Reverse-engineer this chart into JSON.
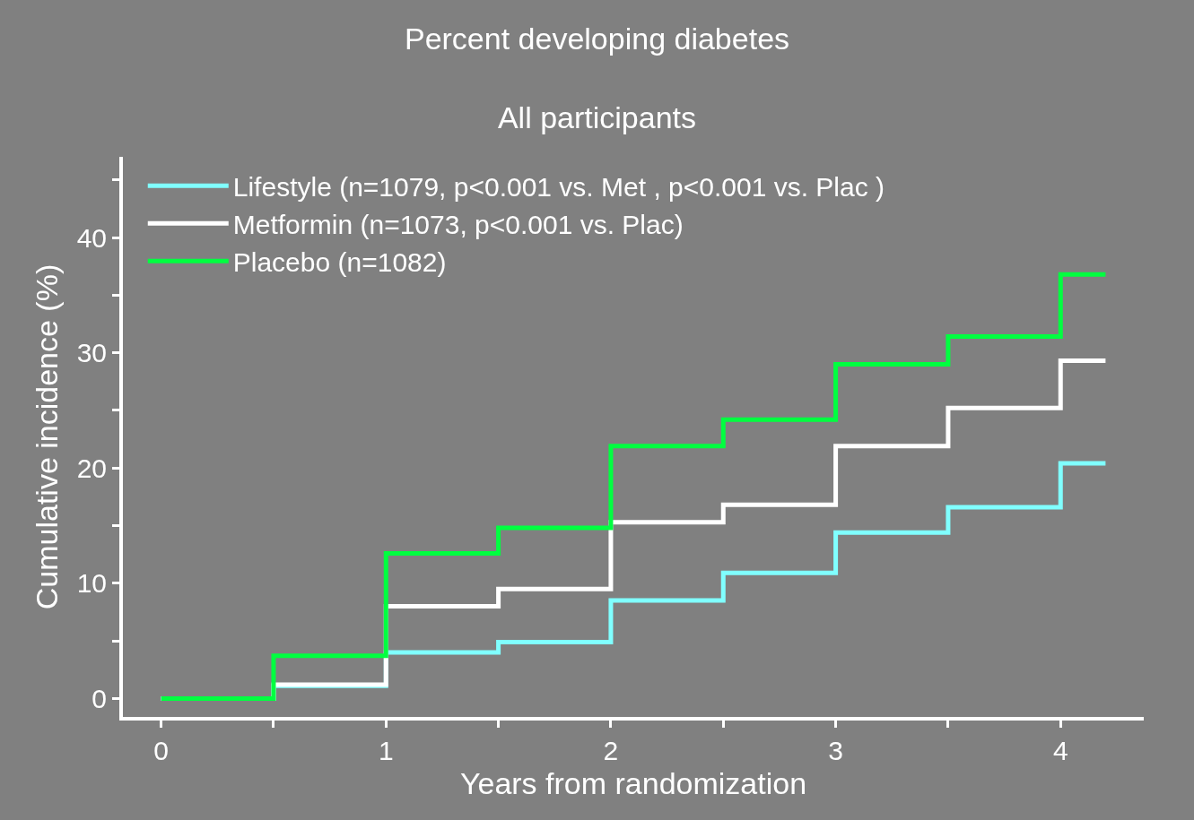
{
  "chart_data": {
    "type": "step",
    "title": "Percent developing diabetes",
    "subtitle": "All participants",
    "xlabel": "Years from randomization",
    "ylabel": "Cumulative incidence (%)",
    "x": [
      0,
      0.5,
      1,
      1.5,
      2,
      2.5,
      3,
      3.5,
      4,
      4.2
    ],
    "series": [
      {
        "name": "Lifestyle (n=1079, p<0.001 vs. Met , p<0.001 vs. Plac )",
        "color": "#80ffff",
        "values": [
          0,
          1.1,
          4.0,
          4.9,
          8.5,
          10.9,
          14.4,
          16.6,
          20.4,
          20.4
        ]
      },
      {
        "name": "Metformin (n=1073, p<0.001 vs. Plac)",
        "color": "#ffffff",
        "values": [
          0,
          1.2,
          8.0,
          9.5,
          15.3,
          16.8,
          21.9,
          25.2,
          29.3,
          29.3
        ]
      },
      {
        "name": "Placebo (n=1082)",
        "color": "#00ff40",
        "values": [
          0,
          3.7,
          12.6,
          14.8,
          21.9,
          24.2,
          29.0,
          31.4,
          36.8,
          36.8
        ]
      }
    ],
    "xlim": [
      -0.17,
      4.37
    ],
    "ylim": [
      -1.6,
      47
    ],
    "xticks": [
      0,
      {
        "value": 0.5,
        "label": null
      },
      1,
      {
        "value": 1.5,
        "label": null
      },
      2,
      {
        "value": 2.5,
        "label": null
      },
      3,
      {
        "value": 3.5,
        "label": null
      },
      4
    ],
    "yticks": [
      0,
      {
        "value": 5,
        "label": null
      },
      10,
      {
        "value": 15,
        "label": null
      },
      20,
      {
        "value": 25,
        "label": null
      },
      30,
      {
        "value": 35,
        "label": null
      },
      40,
      {
        "value": 45,
        "label": null
      }
    ],
    "legend": "top left",
    "marker": "none",
    "line_style": "solid"
  }
}
